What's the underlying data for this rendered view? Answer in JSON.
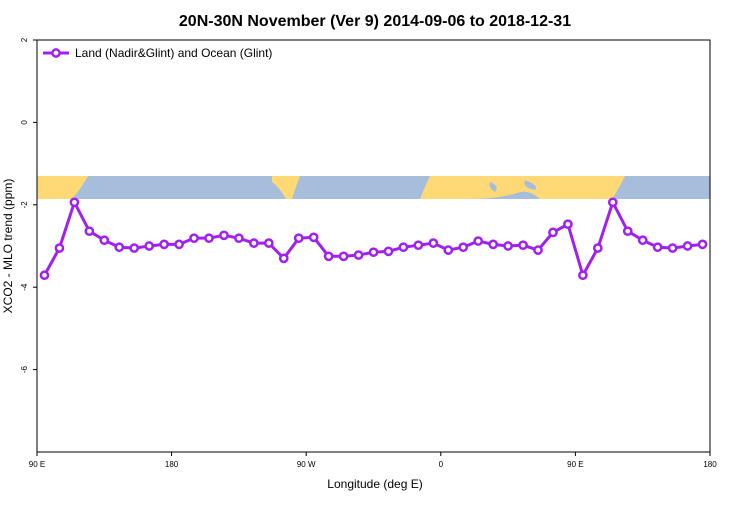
{
  "chart_data": {
    "type": "line",
    "title": "20N-30N November (Ver 9)   2014-09-06 to 2018-12-31",
    "x_label": "Longitude (deg E)",
    "y_label": "XCO2 - MLO trend (ppm)",
    "x": [
      95,
      105,
      115,
      125,
      135,
      145,
      155,
      165,
      175,
      185,
      195,
      205,
      215,
      225,
      235,
      245,
      255,
      265,
      275,
      285,
      295,
      305,
      315,
      325,
      335,
      345,
      355,
      365,
      375,
      385,
      395,
      405,
      415,
      425,
      435,
      445,
      455,
      465,
      475,
      485,
      495,
      505,
      515,
      525,
      535
    ],
    "series": [
      {
        "name": "Land (Nadir&Glint) and Ocean (Glint)",
        "color": "#a020f0",
        "values": [
          -3.71,
          -3.05,
          -1.94,
          -2.64,
          -2.86,
          -3.03,
          -3.05,
          -3.0,
          -2.96,
          -2.96,
          -2.81,
          -2.81,
          -2.74,
          -2.81,
          -2.93,
          -2.93,
          -3.3,
          -2.81,
          -2.79,
          -3.25,
          -3.25,
          -3.22,
          -3.15,
          -3.13,
          -3.03,
          -2.98,
          -2.93,
          -3.1,
          -3.03,
          -2.88,
          -2.96,
          -3.0,
          -2.98,
          -3.1,
          -2.67,
          -2.47,
          -3.71,
          -3.05,
          -1.94,
          -2.64,
          -2.86,
          -3.03,
          -3.05,
          -3.0,
          -2.96
        ]
      }
    ],
    "xlim": [
      90,
      540
    ],
    "xticks": [
      {
        "value": 90,
        "label": "90 E"
      },
      180,
      {
        "value": 270,
        "label": "90 W"
      },
      {
        "value": 360,
        "label": "0"
      },
      {
        "value": 450,
        "label": "90 E"
      },
      {
        "value": 540,
        "label": "180"
      }
    ],
    "ylim": [
      -8,
      2
    ],
    "yticks": [
      -6,
      -4,
      -2,
      0,
      2
    ],
    "legend": "top-left"
  }
}
